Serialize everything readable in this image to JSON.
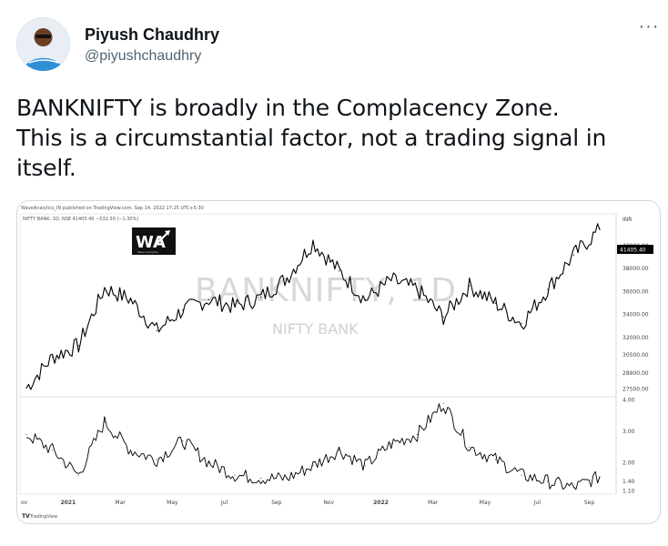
{
  "author": {
    "name": "Piyush Chaudhry",
    "handle": "@piyushchaudhry",
    "avatar_icon": "user-avatar-icon"
  },
  "more_icon": "more-horizontal-icon",
  "more_glyph": "···",
  "tweet": {
    "lines": [
      "BANKNIFTY is broadly in the Complacency Zone.",
      "This is a circumstantial factor, not a trading signal in",
      "itself."
    ]
  },
  "chart": {
    "header_line": "WaveAnalytics_IN published on TradingView.com, Sep 14, 2022 17:25 UTC+5:30",
    "symbol_line": "NIFTY BANK, 1D, NSE  41405.40  −532.30 (−1.30%)",
    "logo_text": "WA",
    "logo_sub": "Wave Analytics",
    "watermark_title": "BANKNIFTY, 1D",
    "watermark_sub": "NIFTY BANK",
    "currency": "INR",
    "last_price_label": "41405.40",
    "footer_brand": "TradingView",
    "price_ticks": [
      "40000.00",
      "38000.00",
      "36000.00",
      "34000.00",
      "32000.00",
      "30500.00",
      "28900.00",
      "27500.00"
    ],
    "indicator_ticks": [
      "4.00",
      "3.00",
      "2.00",
      "1.40",
      "1.10"
    ],
    "x_ticks": [
      "2021",
      "Mar",
      "May",
      "Jul",
      "Sep",
      "Nov",
      "2022",
      "Mar",
      "May",
      "Jul",
      "Sep"
    ],
    "x_tick_first": "ov"
  },
  "chart_data": [
    {
      "type": "line",
      "title": "BANKNIFTY, 1D",
      "subtitle": "NIFTY BANK",
      "ylabel": "INR",
      "x": [
        "2020-11",
        "2020-12",
        "2021-01",
        "2021-02",
        "2021-03",
        "2021-04",
        "2021-05",
        "2021-06",
        "2021-07",
        "2021-08",
        "2021-09",
        "2021-10",
        "2021-11",
        "2021-12",
        "2022-01",
        "2022-02",
        "2022-03",
        "2022-04",
        "2022-05",
        "2022-06",
        "2022-07",
        "2022-08",
        "2022-09"
      ],
      "series": [
        {
          "name": "NIFTY BANK",
          "values": [
            27600,
            30300,
            31300,
            36300,
            35300,
            32600,
            34400,
            35300,
            34700,
            35500,
            37200,
            40300,
            37800,
            35300,
            37000,
            36200,
            33800,
            36500,
            35000,
            33200,
            36200,
            39200,
            41405
          ]
        }
      ]
    },
    {
      "type": "line",
      "x": [
        "2020-11",
        "2020-12",
        "2021-01",
        "2021-02",
        "2021-03",
        "2021-04",
        "2021-05",
        "2021-06",
        "2021-07",
        "2021-08",
        "2021-09",
        "2021-10",
        "2021-11",
        "2021-12",
        "2022-01",
        "2022-02",
        "2022-03",
        "2022-04",
        "2022-05",
        "2022-06",
        "2022-07",
        "2022-08",
        "2022-09"
      ],
      "series": [
        {
          "values": [
            2.9,
            2.4,
            1.6,
            3.3,
            2.4,
            2.1,
            2.7,
            2.0,
            1.6,
            1.5,
            1.5,
            1.9,
            2.4,
            1.9,
            2.6,
            2.9,
            3.9,
            2.5,
            2.1,
            1.6,
            1.4,
            1.2,
            1.55
          ]
        }
      ]
    }
  ]
}
